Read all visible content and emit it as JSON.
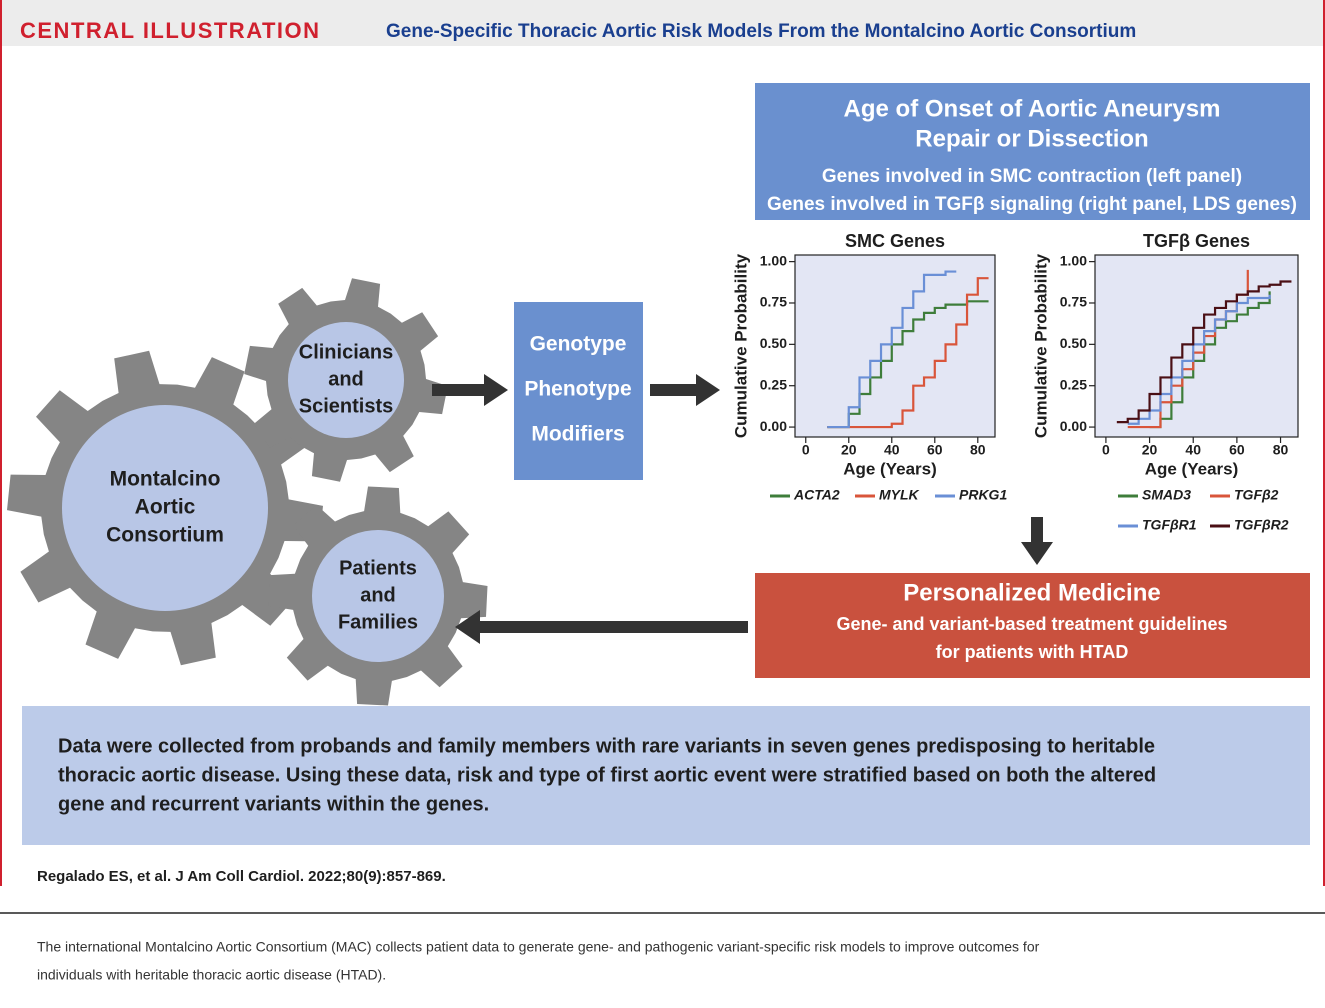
{
  "header": {
    "label": "CENTRAL ILLUSTRATION",
    "title": "Gene-Specific Thoracic Aortic Risk Models From the Montalcino Aortic Consortium"
  },
  "gears": {
    "main": [
      "Montalcino",
      "Aortic",
      "Consortium"
    ],
    "clinicians": [
      "Clinicians",
      "and",
      "Scientists"
    ],
    "patients": [
      "Patients",
      "and",
      "Families"
    ]
  },
  "modifiers": [
    "Genotype",
    "Phenotype",
    "Modifiers"
  ],
  "onset": {
    "title": [
      "Age of Onset of Aortic Aneurysm",
      "Repair or Dissection"
    ],
    "lines": [
      "Genes involved in SMC contraction (left panel)",
      "Genes involved in TGFβ signaling (right panel, LDS genes)"
    ]
  },
  "chart_data": [
    {
      "type": "line",
      "step": true,
      "title": "SMC Genes",
      "xlabel": "Age (Years)",
      "ylabel": "Cumulative Probability",
      "x": [
        5,
        10,
        15,
        20,
        25,
        30,
        35,
        40,
        45,
        50,
        55,
        60,
        65,
        70,
        75,
        80,
        85
      ],
      "series": [
        {
          "name": "ACTA2",
          "color": "#3e7d3a",
          "values": [
            null,
            0,
            0,
            0.08,
            0.2,
            0.3,
            0.4,
            0.5,
            0.58,
            0.65,
            0.69,
            0.72,
            0.74,
            0.74,
            0.76,
            0.76,
            0.76
          ]
        },
        {
          "name": "MYLK",
          "color": "#d9553a",
          "values": [
            null,
            0,
            0,
            0,
            0,
            0,
            0,
            0.02,
            0.1,
            0.25,
            0.3,
            0.4,
            0.5,
            0.62,
            0.8,
            0.9,
            0.9
          ]
        },
        {
          "name": "PRKG1",
          "color": "#6a8fd6",
          "values": [
            null,
            0,
            0,
            0.12,
            0.3,
            0.4,
            0.5,
            0.6,
            0.72,
            0.82,
            0.92,
            0.92,
            0.94,
            0.94,
            null,
            null,
            null
          ]
        }
      ],
      "xlim": [
        -5,
        88
      ],
      "ylim": [
        -0.06,
        1.04
      ],
      "xticks": [
        0,
        20,
        40,
        60,
        80
      ],
      "yticks": [
        {
          "value": 0,
          "label": "0.00"
        },
        {
          "value": 0.25,
          "label": "0.25"
        },
        {
          "value": 0.5,
          "label": "0.50"
        },
        {
          "value": 0.75,
          "label": "0.75"
        },
        {
          "value": 1,
          "label": "1.00"
        }
      ]
    },
    {
      "type": "line",
      "step": true,
      "title": "TGFβ Genes",
      "xlabel": "Age (Years)",
      "ylabel": "Cumulative Probability",
      "x": [
        5,
        10,
        15,
        20,
        25,
        30,
        35,
        40,
        45,
        50,
        55,
        60,
        65,
        70,
        75,
        80,
        85
      ],
      "series": [
        {
          "name": "SMAD3",
          "color": "#3e7d3a",
          "values": [
            null,
            null,
            null,
            0,
            0.05,
            0.15,
            0.3,
            0.4,
            0.5,
            0.6,
            0.64,
            0.68,
            0.72,
            0.75,
            0.82,
            null,
            null
          ]
        },
        {
          "name": "TGFβ2",
          "color": "#d9553a",
          "values": [
            null,
            0,
            0,
            0,
            0.15,
            0.25,
            0.35,
            0.45,
            0.55,
            0.65,
            0.7,
            0.8,
            0.95,
            null,
            null,
            null,
            null
          ]
        },
        {
          "name": "TGFβR1",
          "color": "#6a8fd6",
          "values": [
            null,
            0.02,
            0.05,
            0.1,
            0.2,
            0.3,
            0.4,
            0.5,
            0.58,
            0.65,
            0.7,
            0.75,
            0.78,
            0.78,
            0.8,
            null,
            null
          ]
        },
        {
          "name": "TGFβR2",
          "color": "#4a0f14",
          "values": [
            0.03,
            0.05,
            0.1,
            0.2,
            0.3,
            0.42,
            0.5,
            0.6,
            0.68,
            0.72,
            0.76,
            0.8,
            0.82,
            0.85,
            0.86,
            0.88,
            0.88
          ]
        }
      ],
      "xlim": [
        -5,
        88
      ],
      "ylim": [
        -0.06,
        1.04
      ],
      "xticks": [
        0,
        20,
        40,
        60,
        80
      ],
      "yticks": [
        {
          "value": 0,
          "label": "0.00"
        },
        {
          "value": 0.25,
          "label": "0.25"
        },
        {
          "value": 0.5,
          "label": "0.50"
        },
        {
          "value": 0.75,
          "label": "0.75"
        },
        {
          "value": 1,
          "label": "1.00"
        }
      ]
    }
  ],
  "personalized": {
    "title": "Personalized Medicine",
    "lines": [
      "Gene- and variant-based treatment guidelines",
      "for patients with HTAD"
    ]
  },
  "summary": [
    "Data were collected from probands and family members with rare variants in seven genes predisposing to heritable",
    "thoracic aortic disease. Using these data, risk and type of first aortic event were stratified based on both the altered",
    "gene and recurrent variants within the genes."
  ],
  "citation": "Regalado ES, et al. J Am Coll Cardiol. 2022;80(9):857-869.",
  "caption": [
    "The international Montalcino Aortic Consortium (MAC) collects patient data to generate gene- and pathogenic variant-specific risk models to improve outcomes for",
    "individuals with heritable thoracic aortic disease (HTAD)."
  ]
}
